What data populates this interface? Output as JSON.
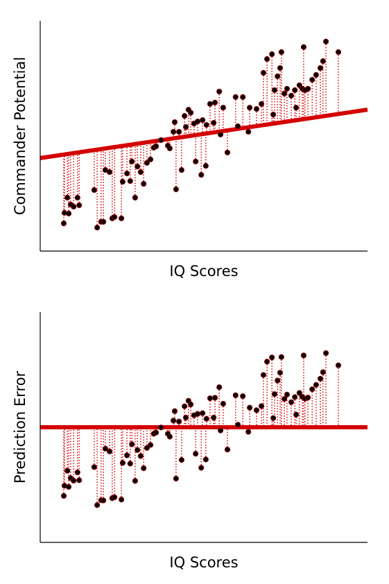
{
  "chart_data": [
    {
      "type": "scatter",
      "x_label": "IQ Scores",
      "y_label": "Commander Potential",
      "xlim": [
        0,
        100
      ],
      "ylim": [
        0,
        100
      ],
      "color": "#000000",
      "line_color": "#d40000",
      "x": [
        7.2,
        7.4,
        8.3,
        8.7,
        9.3,
        10.2,
        11.4,
        11.9,
        16.5,
        17.4,
        18.6,
        19.3,
        19.9,
        21.2,
        22.0,
        22.7,
        24.8,
        25.2,
        26.5,
        27.5,
        28.0,
        29.0,
        29.7,
        30.7,
        31.6,
        32.6,
        33.7,
        34.7,
        35.4,
        36.9,
        39.0,
        39.6,
        40.7,
        41.1,
        41.5,
        42.4,
        43.2,
        44.1,
        44.5,
        45.3,
        46.0,
        47.0,
        47.5,
        48.1,
        49.2,
        49.6,
        50.6,
        50.8,
        51.9,
        53.0,
        53.4,
        54.7,
        55.1,
        55.9,
        57.2,
        59.7,
        60.4,
        61.9,
        63.6,
        64.0,
        66.1,
        67.6,
        68.2,
        69.3,
        70.8,
        71.2,
        71.6,
        72.5,
        73.3,
        73.7,
        74.6,
        75.4,
        76.7,
        77.8,
        78.2,
        79.2,
        80.1,
        80.5,
        80.9,
        81.8,
        83.1,
        84.3,
        85.6,
        86.4,
        87.3,
        91.1
      ],
      "values": [
        12.0,
        16.6,
        23.2,
        16.3,
        20.2,
        19.3,
        23.2,
        19.9,
        26.5,
        10.2,
        12.7,
        12.7,
        35.2,
        34.3,
        14.2,
        14.8,
        14.2,
        30.1,
        33.7,
        30.4,
        38.9,
        23.2,
        36.7,
        34.3,
        29.2,
        38.3,
        39.8,
        44.9,
        45.5,
        48.2,
        45.8,
        44.6,
        51.8,
        56.0,
        26.8,
        51.8,
        35.2,
        58.7,
        53.9,
        61.4,
        60.1,
        55.4,
        38.9,
        56.3,
        33.1,
        56.9,
        37.0,
        54.8,
        63.9,
        55.7,
        64.5,
        69.3,
        50.6,
        62.3,
        42.8,
        66.9,
        54.2,
        66.9,
        51.8,
        62.3,
        61.7,
        63.9,
        77.4,
        83.4,
        85.5,
        59.3,
        69.9,
        75.9,
        79.5,
        86.4,
        68.4,
        70.5,
        67.5,
        69.9,
        62.3,
        72.0,
        70.5,
        88.6,
        69.9,
        70.5,
        74.4,
        76.5,
        79.5,
        82.5,
        91.0,
        86.4
      ],
      "fit_line": {
        "x": [
          0,
          100
        ],
        "y": [
          40.4,
          61.4
        ]
      }
    },
    {
      "type": "scatter",
      "x_label": "IQ Scores",
      "y_label": "Prediction Error",
      "xlim": [
        0,
        100
      ],
      "ylim": [
        -50,
        50
      ],
      "color": "#000000",
      "line_color": "#d40000",
      "x": [
        7.2,
        7.4,
        8.3,
        8.7,
        9.3,
        10.2,
        11.4,
        11.9,
        16.5,
        17.4,
        18.6,
        19.3,
        19.9,
        21.2,
        22.0,
        22.7,
        24.8,
        25.2,
        26.5,
        27.5,
        28.0,
        29.0,
        29.7,
        30.7,
        31.6,
        32.6,
        33.7,
        34.7,
        35.4,
        36.9,
        39.0,
        39.6,
        40.7,
        41.1,
        41.5,
        42.4,
        43.2,
        44.1,
        44.5,
        45.3,
        46.0,
        47.0,
        47.5,
        48.1,
        49.2,
        49.6,
        50.6,
        50.8,
        51.9,
        53.0,
        53.4,
        54.7,
        55.1,
        55.9,
        57.2,
        59.7,
        60.4,
        61.9,
        63.6,
        64.0,
        66.1,
        67.6,
        68.2,
        69.3,
        70.8,
        71.2,
        71.6,
        72.5,
        73.3,
        73.7,
        74.6,
        75.4,
        76.7,
        77.8,
        78.2,
        79.2,
        80.1,
        80.5,
        80.9,
        81.8,
        83.1,
        84.3,
        85.6,
        86.4,
        87.3,
        91.1
      ],
      "values": [
        -29.8,
        -25.4,
        -18.9,
        -25.9,
        -22.1,
        -23.2,
        -19.6,
        -23.0,
        -17.3,
        -33.8,
        -31.7,
        -31.8,
        -9.3,
        -10.5,
        -30.8,
        -30.4,
        -31.4,
        -15.5,
        -12.2,
        -15.8,
        -7.4,
        -23.3,
        -9.9,
        -12.5,
        -17.8,
        -9.0,
        -7.7,
        -2.8,
        -2.3,
        -0.1,
        -2.8,
        -4.1,
        2.9,
        7.0,
        -22.3,
        2.5,
        -14.2,
        9.1,
        4.2,
        11.5,
        9.9,
        5.2,
        -11.5,
        5.8,
        -17.6,
        6.1,
        -14.0,
        3.7,
        12.6,
        4.2,
        12.8,
        17.4,
        -1.4,
        10.2,
        -9.7,
        13.9,
        1.1,
        13.5,
        -2.0,
        8.5,
        7.4,
        9.2,
        22.7,
        28.5,
        30.3,
        4.0,
        14.4,
        20.3,
        23.7,
        30.5,
        12.3,
        14.2,
        10.9,
        13.1,
        5.5,
        14.9,
        13.2,
        31.2,
        12.4,
        12.9,
        16.5,
        18.4,
        21.1,
        23.9,
        32.2,
        26.9
      ],
      "fit_line": {
        "x": [
          0,
          100
        ],
        "y": [
          0,
          0
        ]
      }
    }
  ]
}
